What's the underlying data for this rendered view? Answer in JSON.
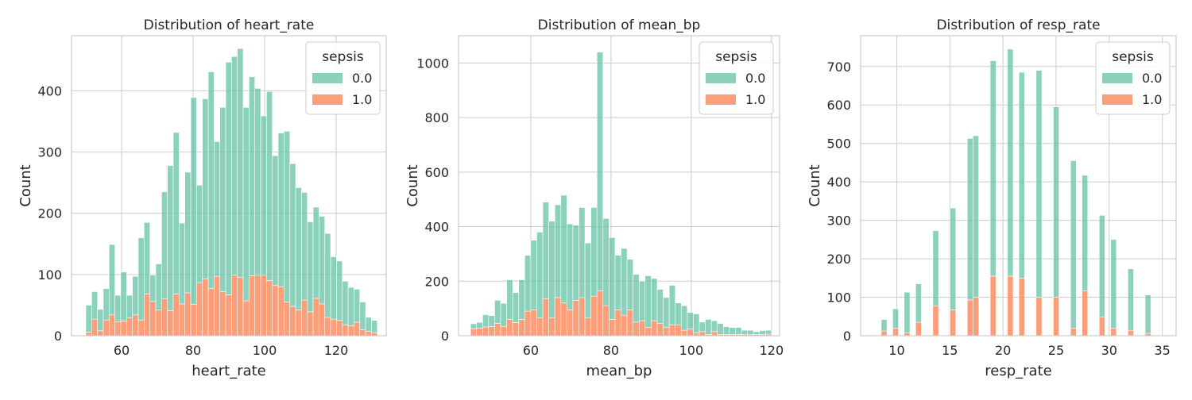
{
  "colors": {
    "sepsis_0": "#66c2a5",
    "sepsis_1": "#fc8d62",
    "grid": "#cccccc",
    "spine": "#cccccc",
    "text": "#262626"
  },
  "chart_data": [
    {
      "type": "histogram-stacked",
      "title": "Distribution of heart_rate",
      "xlabel": "heart_rate",
      "ylabel": "Count",
      "xlim": [
        46,
        134
      ],
      "ylim": [
        0,
        490
      ],
      "xticks": [
        60,
        80,
        100,
        120
      ],
      "yticks": [
        0,
        100,
        200,
        300,
        400
      ],
      "grid": true,
      "legend": {
        "title": "sepsis",
        "entries": [
          "0.0",
          "1.0"
        ],
        "placement": "top-right"
      },
      "bins": {
        "start": 50,
        "width": 1.63,
        "count": 50
      },
      "series": [
        {
          "name": "0.0",
          "values": [
            44,
            45,
            35,
            52,
            115,
            43,
            80,
            37,
            63,
            135,
            117,
            43,
            75,
            175,
            237,
            264,
            132,
            197,
            338,
            160,
            294,
            354,
            220,
            301,
            380,
            357,
            374,
            316,
            325,
            305,
            260,
            309,
            212,
            251,
            279,
            233,
            200,
            176,
            147,
            149,
            143,
            137,
            102,
            97,
            71,
            63,
            54,
            45,
            23,
            20
          ]
        },
        {
          "name": "1.0",
          "values": [
            6,
            27,
            8,
            25,
            34,
            23,
            24,
            29,
            34,
            25,
            68,
            56,
            42,
            60,
            41,
            68,
            52,
            70,
            51,
            86,
            93,
            77,
            97,
            72,
            67,
            99,
            95,
            57,
            98,
            99,
            99,
            90,
            82,
            80,
            55,
            48,
            42,
            58,
            39,
            61,
            52,
            30,
            27,
            25,
            18,
            16,
            22,
            10,
            7,
            5
          ]
        }
      ]
    },
    {
      "type": "histogram-stacked",
      "title": "Distribution of mean_bp",
      "xlabel": "mean_bp",
      "ylabel": "Count",
      "xlim": [
        42,
        122
      ],
      "ylim": [
        0,
        1100
      ],
      "xticks": [
        60,
        80,
        100,
        120
      ],
      "yticks": [
        0,
        200,
        400,
        600,
        800,
        1000
      ],
      "grid": true,
      "legend": {
        "title": "sepsis",
        "entries": [
          "0.0",
          "1.0"
        ],
        "placement": "top-right"
      },
      "bins": {
        "start": 45,
        "width": 1.5,
        "count": 50
      },
      "series": [
        {
          "name": "0.0",
          "values": [
            18,
            22,
            45,
            40,
            85,
            85,
            145,
            110,
            145,
            205,
            255,
            315,
            355,
            355,
            340,
            395,
            315,
            275,
            330,
            275,
            325,
            875,
            320,
            300,
            200,
            245,
            185,
            175,
            145,
            190,
            155,
            125,
            110,
            145,
            80,
            90,
            60,
            70,
            35,
            55,
            40,
            40,
            28,
            25,
            25,
            15,
            16,
            10,
            15,
            14
          ]
        },
        {
          "name": "1.0",
          "values": [
            26,
            27,
            32,
            34,
            45,
            34,
            60,
            48,
            60,
            90,
            95,
            65,
            135,
            65,
            140,
            120,
            95,
            130,
            140,
            65,
            145,
            165,
            110,
            60,
            95,
            75,
            95,
            50,
            55,
            30,
            55,
            45,
            30,
            40,
            40,
            20,
            25,
            10,
            15,
            5,
            15,
            5,
            5,
            5,
            5,
            5,
            4,
            5,
            4,
            6
          ]
        }
      ]
    },
    {
      "type": "histogram-stacked",
      "title": "Distribution of resp_rate",
      "xlabel": "resp_rate",
      "ylabel": "Count",
      "xlim": [
        6.6,
        36.3
      ],
      "ylim": [
        0,
        780
      ],
      "xticks": [
        10,
        15,
        20,
        25,
        30,
        35
      ],
      "yticks": [
        0,
        100,
        200,
        300,
        400,
        500,
        600,
        700
      ],
      "grid": true,
      "legend": {
        "title": "sepsis",
        "entries": [
          "0.0",
          "1.0"
        ],
        "placement": "top-right"
      },
      "bins": {
        "start": 8,
        "width": 0.54,
        "count": 50
      },
      "series": [
        {
          "name": "0.0",
          "values": [
            0,
            30,
            0,
            50,
            0,
            105,
            0,
            100,
            0,
            0,
            195,
            0,
            0,
            265,
            0,
            0,
            420,
            420,
            0,
            0,
            560,
            0,
            0,
            590,
            0,
            535,
            0,
            0,
            590,
            0,
            0,
            495,
            0,
            0,
            435,
            0,
            300,
            0,
            0,
            265,
            0,
            230,
            0,
            0,
            160,
            0,
            0,
            100,
            0,
            0
          ]
        },
        {
          "name": "1.0",
          "values": [
            0,
            12,
            0,
            20,
            0,
            8,
            0,
            35,
            0,
            0,
            78,
            0,
            0,
            67,
            0,
            0,
            93,
            100,
            0,
            0,
            155,
            0,
            0,
            155,
            0,
            150,
            0,
            0,
            100,
            0,
            0,
            100,
            0,
            0,
            20,
            0,
            117,
            0,
            0,
            48,
            0,
            20,
            0,
            0,
            14,
            0,
            0,
            6,
            0,
            0
          ]
        }
      ]
    }
  ]
}
